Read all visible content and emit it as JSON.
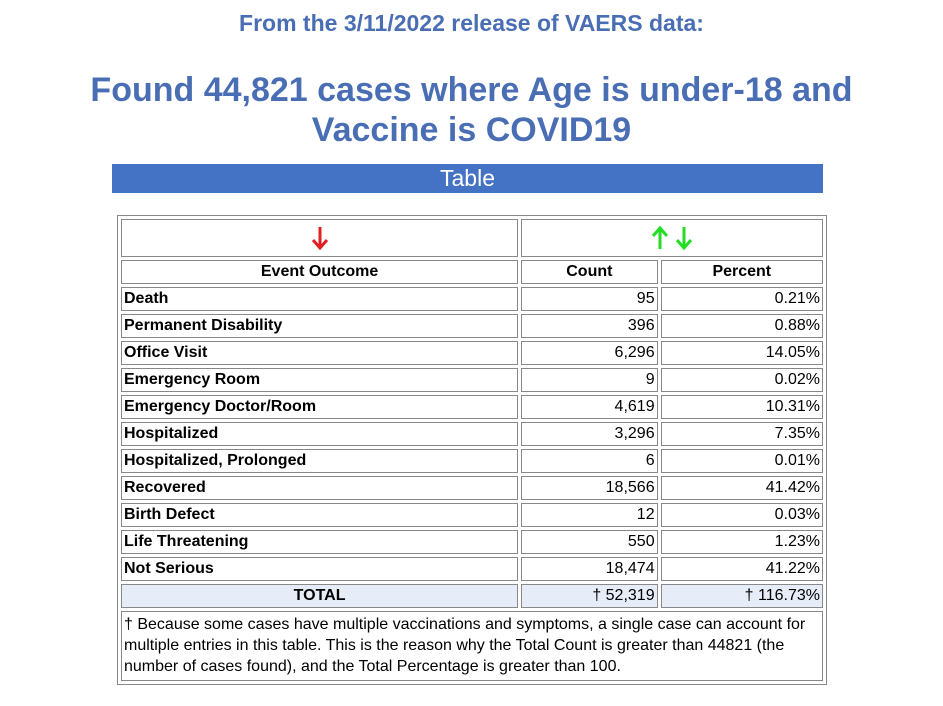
{
  "header": {
    "release": "From the 3/11/2022 release of VAERS data:",
    "title": "Found 44,821 cases where Age is under-18 and Vaccine is COVID19"
  },
  "section": "Table",
  "table": {
    "columns": [
      "Event Outcome",
      "Count",
      "Percent"
    ],
    "rows": [
      [
        "Death",
        "95",
        "0.21%"
      ],
      [
        "Permanent Disability",
        "396",
        "0.88%"
      ],
      [
        "Office Visit",
        "6,296",
        "14.05%"
      ],
      [
        "Emergency Room",
        "9",
        "0.02%"
      ],
      [
        "Emergency Doctor/Room",
        "4,619",
        "10.31%"
      ],
      [
        "Hospitalized",
        "3,296",
        "7.35%"
      ],
      [
        "Hospitalized, Prolonged",
        "6",
        "0.01%"
      ],
      [
        "Recovered",
        "18,566",
        "41.42%"
      ],
      [
        "Birth Defect",
        "12",
        "0.03%"
      ],
      [
        "Life Threatening",
        "550",
        "1.23%"
      ],
      [
        "Not Serious",
        "18,474",
        "41.22%"
      ]
    ],
    "total": [
      "TOTAL",
      "† 52,319",
      "† 116.73%"
    ],
    "note": "† Because some cases have multiple vaccinations and symptoms, a single case can account for multiple entries in this table. This is the reason why the Total Count is greater than 44821 (the number of cases found), and the Total Percentage is greater than 100."
  }
}
